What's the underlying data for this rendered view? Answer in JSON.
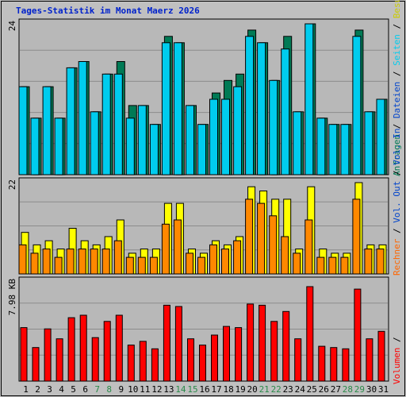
{
  "title": "Tages-Statistik im Monat Maerz 2026",
  "colors": {
    "background": "#c0c0c0",
    "panel": "#b8b8b8",
    "gridline": "#8c8c8c",
    "title": "#0022cc",
    "hits": "#007a55",
    "files": "#00ccee",
    "pages": "#00a8cc",
    "visits": "#ffff00",
    "sites": "#ff8800",
    "kbytes": "#ff0000",
    "weekday_label": "#000000",
    "weekend_label": "#2a8a4a"
  },
  "legends": {
    "top": [
      {
        "text": "Anfragen",
        "color": "#007a55"
      },
      {
        "text": " / ",
        "color": "#000000"
      },
      {
        "text": "Dateien",
        "color": "#0044cc"
      },
      {
        "text": " / ",
        "color": "#000000"
      },
      {
        "text": "Seiten",
        "color": "#00ccee"
      },
      {
        "text": " / ",
        "color": "#000000"
      },
      {
        "text": "Besuche",
        "color": "#cccc00"
      }
    ],
    "middle": [
      {
        "text": "Rechner",
        "color": "#ff6600"
      },
      {
        "text": " / ",
        "color": "#000000"
      },
      {
        "text": "Vol. Out",
        "color": "#0044cc"
      },
      {
        "text": " / ",
        "color": "#000000"
      },
      {
        "text": "Vol. In",
        "color": "#0044cc"
      }
    ],
    "bottom": [
      {
        "text": "Volumen",
        "color": "#ff0000"
      },
      {
        "text": " / ",
        "color": "#000000"
      }
    ]
  },
  "chart_data": [
    {
      "type": "bar",
      "name": "hits-files",
      "y_max_label": "24",
      "ylim": [
        0,
        24
      ],
      "categories": [
        "1",
        "2",
        "3",
        "4",
        "5",
        "6",
        "7",
        "8",
        "9",
        "10",
        "11",
        "12",
        "13",
        "14",
        "15",
        "16",
        "17",
        "18",
        "19",
        "20",
        "21",
        "22",
        "23",
        "24",
        "25",
        "26",
        "27",
        "28",
        "29",
        "30",
        "31"
      ],
      "weekend": [
        false,
        false,
        false,
        false,
        false,
        false,
        true,
        true,
        false,
        false,
        false,
        false,
        false,
        true,
        true,
        false,
        false,
        false,
        false,
        false,
        true,
        true,
        false,
        false,
        false,
        false,
        false,
        true,
        true,
        false,
        false
      ],
      "series": [
        {
          "color_key": "hits",
          "values": [
            14,
            9,
            14,
            9,
            17,
            18,
            10,
            16,
            18,
            11,
            11,
            8,
            22,
            21,
            11,
            8,
            13,
            15,
            16,
            23,
            21,
            15,
            22,
            10,
            24,
            9,
            8,
            8,
            23,
            10,
            12
          ]
        },
        {
          "color_key": "files",
          "values": [
            14,
            9,
            14,
            9,
            17,
            18,
            10,
            16,
            16,
            9,
            11,
            8,
            21,
            21,
            11,
            8,
            12,
            12,
            14,
            22,
            21,
            15,
            20,
            10,
            24,
            9,
            8,
            8,
            22,
            10,
            12
          ]
        }
      ]
    },
    {
      "type": "bar",
      "name": "visits-sites",
      "y_max_label": "22",
      "ylim": [
        0,
        22
      ],
      "categories": [
        "1",
        "2",
        "3",
        "4",
        "5",
        "6",
        "7",
        "8",
        "9",
        "10",
        "11",
        "12",
        "13",
        "14",
        "15",
        "16",
        "17",
        "18",
        "19",
        "20",
        "21",
        "22",
        "23",
        "24",
        "25",
        "26",
        "27",
        "28",
        "29",
        "30",
        "31"
      ],
      "series": [
        {
          "color_key": "visits",
          "values": [
            10,
            7,
            8,
            6,
            11,
            8,
            7,
            9,
            13,
            5,
            6,
            6,
            17,
            17,
            6,
            5,
            8,
            7,
            9,
            21,
            20,
            18,
            18,
            6,
            21,
            6,
            5,
            5,
            22,
            7,
            7
          ]
        },
        {
          "color_key": "sites",
          "values": [
            7,
            5,
            6,
            4,
            6,
            6,
            6,
            6,
            8,
            4,
            4,
            4,
            12,
            13,
            5,
            4,
            7,
            6,
            8,
            18,
            17,
            14,
            9,
            5,
            13,
            4,
            4,
            4,
            18,
            6,
            6
          ]
        }
      ]
    },
    {
      "type": "bar",
      "name": "kbytes",
      "y_max_label": "7.98 KB",
      "ylim": [
        0,
        7.98
      ],
      "categories": [
        "1",
        "2",
        "3",
        "4",
        "5",
        "6",
        "7",
        "8",
        "9",
        "10",
        "11",
        "12",
        "13",
        "14",
        "15",
        "16",
        "17",
        "18",
        "19",
        "20",
        "21",
        "22",
        "23",
        "24",
        "25",
        "26",
        "27",
        "28",
        "29",
        "30",
        "31"
      ],
      "series": [
        {
          "color_key": "kbytes",
          "values": [
            4.3,
            2.7,
            4.2,
            3.4,
            5.1,
            5.3,
            3.5,
            4.8,
            5.3,
            2.9,
            3.2,
            2.6,
            6.1,
            6.0,
            3.4,
            2.9,
            3.7,
            4.4,
            4.3,
            6.2,
            6.1,
            4.8,
            5.6,
            3.4,
            7.6,
            2.8,
            2.7,
            2.6,
            7.4,
            3.4,
            4.0
          ]
        }
      ]
    }
  ]
}
